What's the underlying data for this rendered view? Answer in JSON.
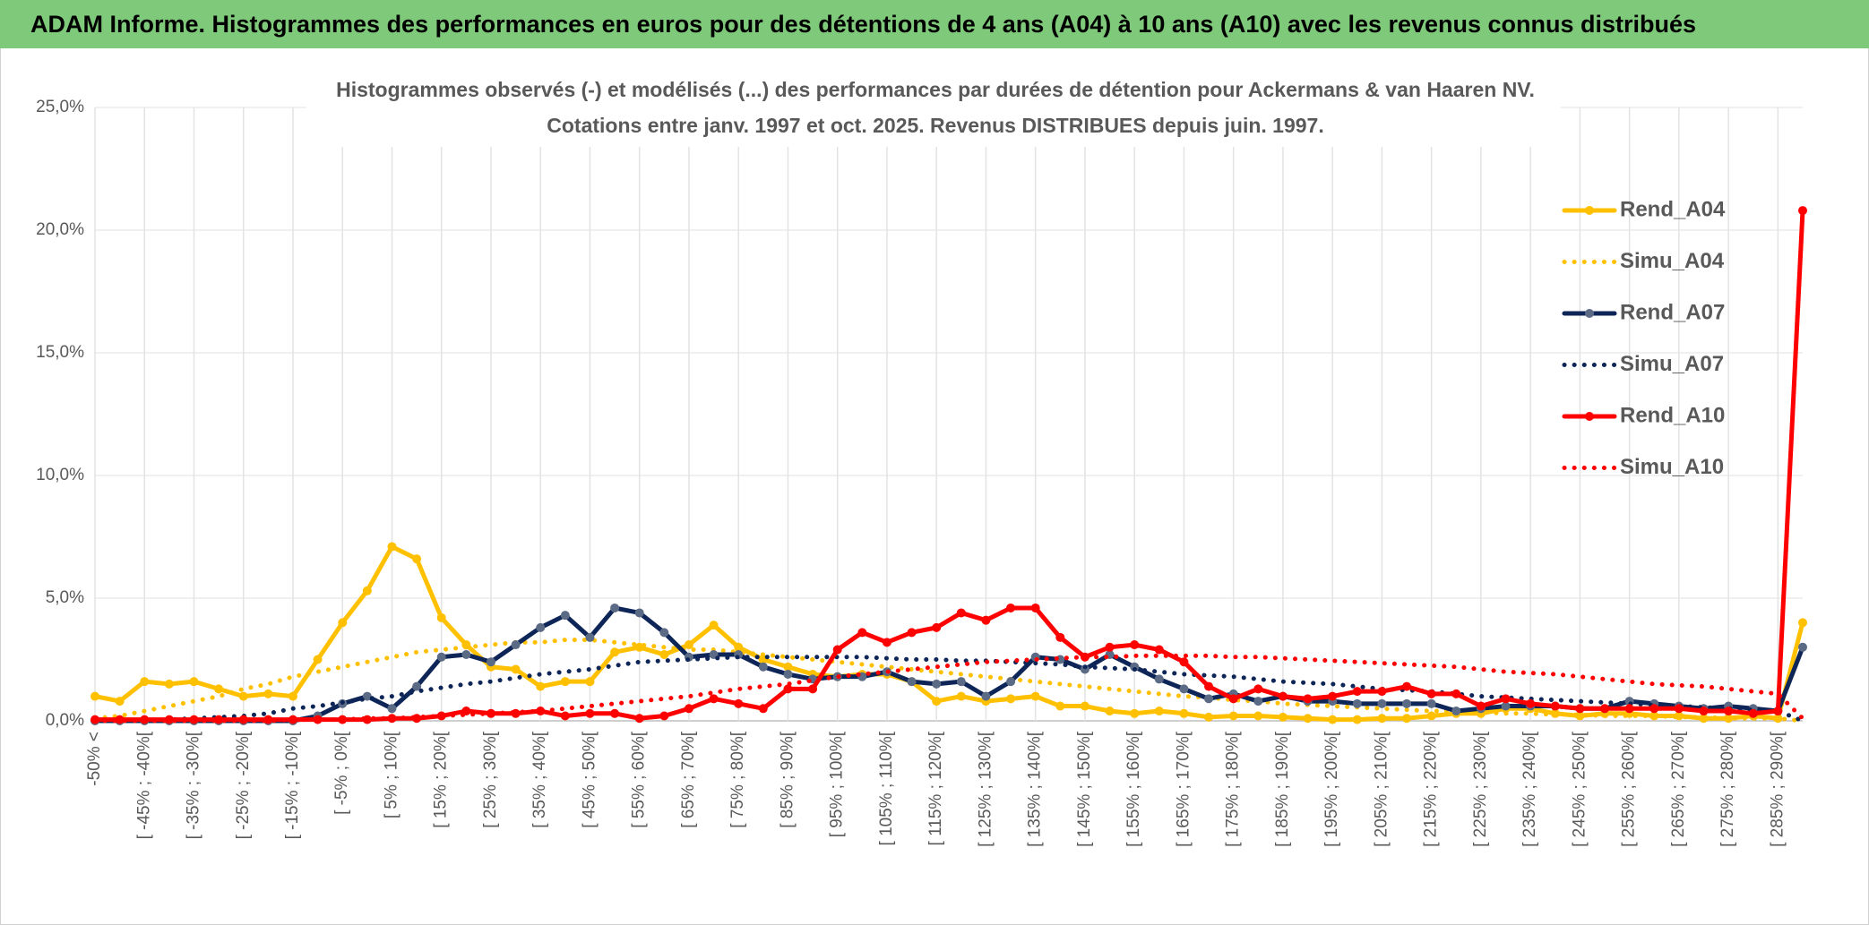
{
  "header": {
    "title": "ADAM Informe. Histogrammes des performances en euros pour des détentions de 4 ans (A04) à 10 ans (A10) avec les revenus connus distribués"
  },
  "chart_data": {
    "type": "line",
    "title": "Histogrammes observés (-) et modélisés (...) des performances par durées de détention pour Ackermans & van Haaren NV.",
    "subtitle": "Cotations entre janv. 1997 et oct. 2025. Revenus DISTRIBUES depuis juin. 1997.",
    "categories": [
      "-50% <",
      null,
      "[ -45% ; -40%[",
      null,
      "[ -35% ; -30%[",
      null,
      "[ -25% ; -20%[",
      null,
      "[ -15% ; -10%[",
      null,
      "[ -5% ; 0%[",
      null,
      "[ 5% ; 10%[",
      null,
      "[ 15% ; 20%[",
      null,
      "[ 25% ; 30%[",
      null,
      "[ 35% ; 40%[",
      null,
      "[ 45% ; 50%[",
      null,
      "[ 55% ; 60%[",
      null,
      "[ 65% ; 70%[",
      null,
      "[ 75% ; 80%[",
      null,
      "[ 85% ; 90%[",
      null,
      "[ 95% ; 100%[",
      null,
      "[ 105% ; 110%[",
      null,
      "[ 115% ; 120%[",
      null,
      "[ 125% ; 130%[",
      null,
      "[ 135% ; 140%[",
      null,
      "[ 145% ; 150%[",
      null,
      "[ 155% ; 160%[",
      null,
      "[ 165% ; 170%[",
      null,
      "[ 175% ; 180%[",
      null,
      "[ 185% ; 190%[",
      null,
      "[ 195% ; 200%[",
      null,
      "[ 205% ; 210%[",
      null,
      "[ 215% ; 220%[",
      null,
      "[ 225% ; 230%[",
      null,
      "[ 235% ; 240%[",
      null,
      "[ 245% ; 250%[",
      null,
      "[ 255% ; 260%[",
      null,
      "[ 265% ; 270%[",
      null,
      "[ 275% ; 280%[",
      null,
      "[ 285% ; 290%[",
      null
    ],
    "ylim": [
      0,
      25
    ],
    "yticks": [
      {
        "value": 0,
        "label": "0,0%"
      },
      {
        "value": 5,
        "label": "5,0%"
      },
      {
        "value": 10,
        "label": "10,0%"
      },
      {
        "value": 15,
        "label": "15,0%"
      },
      {
        "value": 20,
        "label": "20,0%"
      },
      {
        "value": 25,
        "label": "25,0%"
      }
    ],
    "legend": "right",
    "series": [
      {
        "name": "Rend_A04",
        "color": "#ffc000",
        "line_style": "solid",
        "marker_color": "#ffc000",
        "values": [
          1.0,
          0.8,
          1.6,
          1.5,
          1.6,
          1.3,
          1.0,
          1.1,
          1.0,
          2.5,
          4.0,
          5.3,
          7.1,
          6.6,
          4.2,
          3.1,
          2.2,
          2.1,
          1.4,
          1.6,
          1.6,
          2.8,
          3.0,
          2.7,
          3.1,
          3.9,
          3.0,
          2.5,
          2.2,
          1.9,
          1.8,
          1.9,
          1.9,
          1.6,
          0.8,
          1.0,
          0.8,
          0.9,
          1.0,
          0.6,
          0.6,
          0.4,
          0.3,
          0.4,
          0.3,
          0.15,
          0.2,
          0.2,
          0.15,
          0.1,
          0.05,
          0.05,
          0.1,
          0.1,
          0.2,
          0.3,
          0.3,
          0.5,
          0.5,
          0.3,
          0.2,
          0.3,
          0.3,
          0.2,
          0.2,
          0.1,
          0.1,
          0.2,
          0.1,
          4.0
        ]
      },
      {
        "name": "Simu_A04",
        "color": "#ffc000",
        "line_style": "dotted",
        "values": [
          0.1,
          0.2,
          0.4,
          0.6,
          0.8,
          1.0,
          1.3,
          1.5,
          1.8,
          2.0,
          2.2,
          2.4,
          2.6,
          2.8,
          2.9,
          3.0,
          3.1,
          3.2,
          3.2,
          3.3,
          3.3,
          3.2,
          3.1,
          3.0,
          2.9,
          2.9,
          2.8,
          2.7,
          2.6,
          2.5,
          2.4,
          2.3,
          2.2,
          2.1,
          2.0,
          1.9,
          1.8,
          1.7,
          1.6,
          1.5,
          1.4,
          1.3,
          1.2,
          1.1,
          1.0,
          0.95,
          0.85,
          0.8,
          0.7,
          0.65,
          0.6,
          0.55,
          0.5,
          0.45,
          0.4,
          0.4,
          0.35,
          0.3,
          0.3,
          0.25,
          0.25,
          0.2,
          0.2,
          0.2,
          0.15,
          0.15,
          0.1,
          0.1,
          0.1,
          0
        ]
      },
      {
        "name": "Rend_A07",
        "color": "#0e2557",
        "line_style": "solid",
        "marker_color": "#5b6b85",
        "values": [
          0,
          0,
          0,
          0,
          0,
          0,
          0,
          0,
          0,
          0.2,
          0.7,
          1.0,
          0.5,
          1.4,
          2.6,
          2.7,
          2.4,
          3.1,
          3.8,
          4.3,
          3.4,
          4.6,
          4.4,
          3.6,
          2.6,
          2.7,
          2.7,
          2.2,
          1.9,
          1.7,
          1.8,
          1.8,
          2.0,
          1.6,
          1.5,
          1.6,
          1.0,
          1.6,
          2.6,
          2.5,
          2.1,
          2.7,
          2.2,
          1.7,
          1.3,
          0.9,
          1.1,
          0.8,
          1.0,
          0.8,
          0.8,
          0.7,
          0.7,
          0.7,
          0.7,
          0.4,
          0.5,
          0.6,
          0.6,
          0.6,
          0.5,
          0.5,
          0.8,
          0.7,
          0.6,
          0.5,
          0.6,
          0.5,
          0.4,
          3.0
        ]
      },
      {
        "name": "Simu_A07",
        "color": "#0e2557",
        "line_style": "dotted",
        "values": [
          0,
          0,
          0,
          0.05,
          0.1,
          0.15,
          0.2,
          0.3,
          0.5,
          0.6,
          0.75,
          0.9,
          1.0,
          1.2,
          1.35,
          1.5,
          1.6,
          1.75,
          1.9,
          2.0,
          2.1,
          2.25,
          2.4,
          2.45,
          2.5,
          2.55,
          2.6,
          2.6,
          2.6,
          2.6,
          2.6,
          2.6,
          2.55,
          2.5,
          2.5,
          2.45,
          2.45,
          2.4,
          2.35,
          2.3,
          2.2,
          2.15,
          2.1,
          2.0,
          1.9,
          1.85,
          1.8,
          1.7,
          1.6,
          1.55,
          1.5,
          1.4,
          1.3,
          1.25,
          1.2,
          1.1,
          1.0,
          0.95,
          0.9,
          0.85,
          0.8,
          0.75,
          0.7,
          0.65,
          0.6,
          0.55,
          0.5,
          0.45,
          0.4,
          0
        ]
      },
      {
        "name": "Rend_A10",
        "color": "#ff0000",
        "line_style": "solid",
        "marker_color": "#ff0000",
        "values": [
          0.05,
          0.05,
          0.05,
          0.05,
          0.05,
          0.05,
          0.05,
          0.05,
          0.05,
          0.05,
          0.05,
          0.05,
          0.1,
          0.1,
          0.2,
          0.4,
          0.3,
          0.3,
          0.4,
          0.2,
          0.3,
          0.3,
          0.1,
          0.2,
          0.5,
          0.9,
          0.7,
          0.5,
          1.3,
          1.3,
          2.9,
          3.6,
          3.2,
          3.6,
          3.8,
          4.4,
          4.1,
          4.6,
          4.6,
          3.4,
          2.6,
          3.0,
          3.1,
          2.9,
          2.4,
          1.4,
          0.9,
          1.3,
          1.0,
          0.9,
          1.0,
          1.2,
          1.2,
          1.4,
          1.1,
          1.1,
          0.6,
          0.9,
          0.7,
          0.6,
          0.5,
          0.5,
          0.5,
          0.5,
          0.5,
          0.4,
          0.4,
          0.3,
          0.4,
          20.8
        ]
      },
      {
        "name": "Simu_A10",
        "color": "#ff0000",
        "line_style": "dotted",
        "values": [
          0,
          0,
          0,
          0,
          0,
          0,
          0,
          0,
          0.05,
          0.05,
          0.05,
          0.1,
          0.1,
          0.15,
          0.2,
          0.25,
          0.3,
          0.35,
          0.4,
          0.5,
          0.6,
          0.7,
          0.8,
          0.9,
          1.0,
          1.15,
          1.3,
          1.4,
          1.5,
          1.65,
          1.8,
          1.9,
          2.0,
          2.1,
          2.2,
          2.3,
          2.4,
          2.45,
          2.5,
          2.55,
          2.6,
          2.6,
          2.65,
          2.65,
          2.65,
          2.65,
          2.6,
          2.6,
          2.55,
          2.5,
          2.45,
          2.4,
          2.35,
          2.3,
          2.25,
          2.2,
          2.1,
          2.0,
          1.95,
          1.9,
          1.8,
          1.7,
          1.6,
          1.5,
          1.45,
          1.4,
          1.3,
          1.2,
          1.1,
          0.1
        ]
      }
    ]
  }
}
